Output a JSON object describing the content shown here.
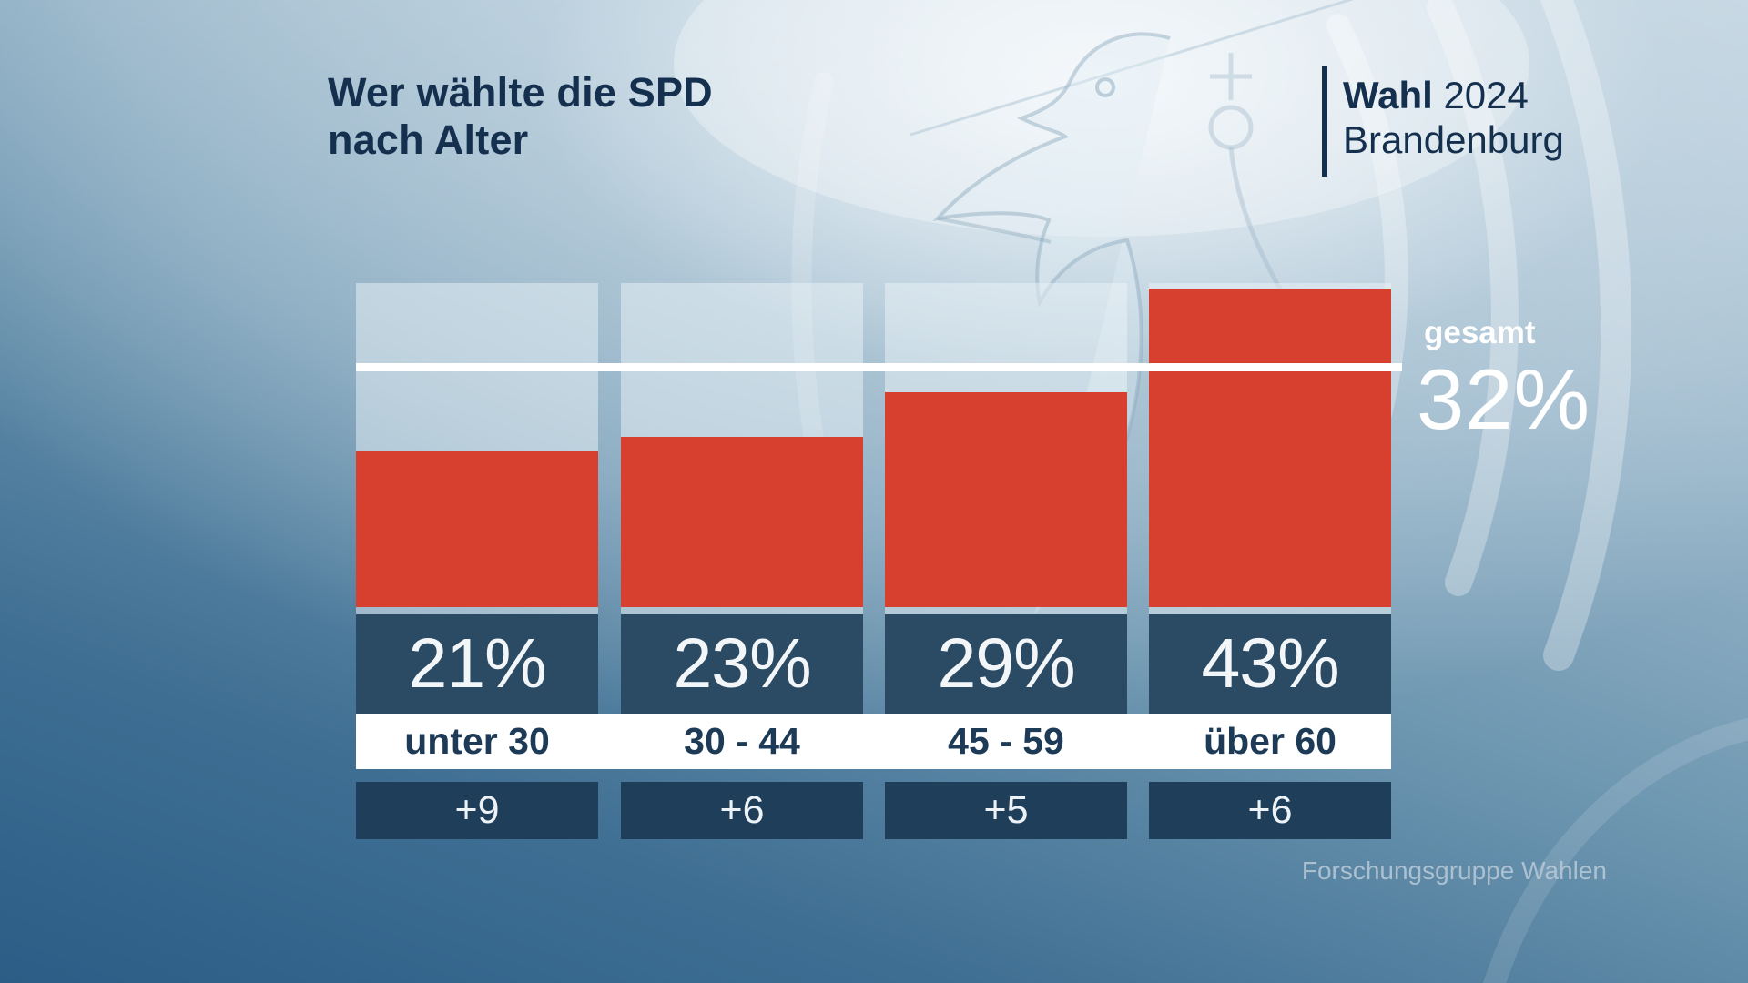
{
  "title": {
    "line1": "Wer wählte die SPD",
    "line2": "nach Alter"
  },
  "badge": {
    "word": "Wahl",
    "year": "2024",
    "region": "Brandenburg"
  },
  "overall": {
    "label": "gesamt",
    "value_label": "32%"
  },
  "source": "Forschungsgruppe Wahlen",
  "chart_data": {
    "type": "bar",
    "title": "Wer wählte die SPD nach Alter",
    "categories": [
      "unter 30",
      "30 - 44",
      "45 - 59",
      "über 60"
    ],
    "values": [
      21,
      23,
      29,
      43
    ],
    "value_labels": [
      "21%",
      "23%",
      "29%",
      "43%"
    ],
    "changes": [
      "+9",
      "+6",
      "+5",
      "+6"
    ],
    "reference_line": {
      "label": "gesamt",
      "value": 32,
      "value_label": "32%"
    },
    "unit": "percent",
    "ylim": [
      0,
      43.7
    ],
    "grid": false,
    "legend": false
  },
  "colors": {
    "bar_red": "#d7402e",
    "value_box_navy": "#2b4a63",
    "change_box_navy": "#1f3e5a",
    "title_navy": "#14304e",
    "label_navy": "#1d3b57",
    "reference_white": "#ffffff",
    "source_text": "#b9cad8"
  },
  "icons": {
    "watermark": "brandenburg-eagle-watermark"
  }
}
